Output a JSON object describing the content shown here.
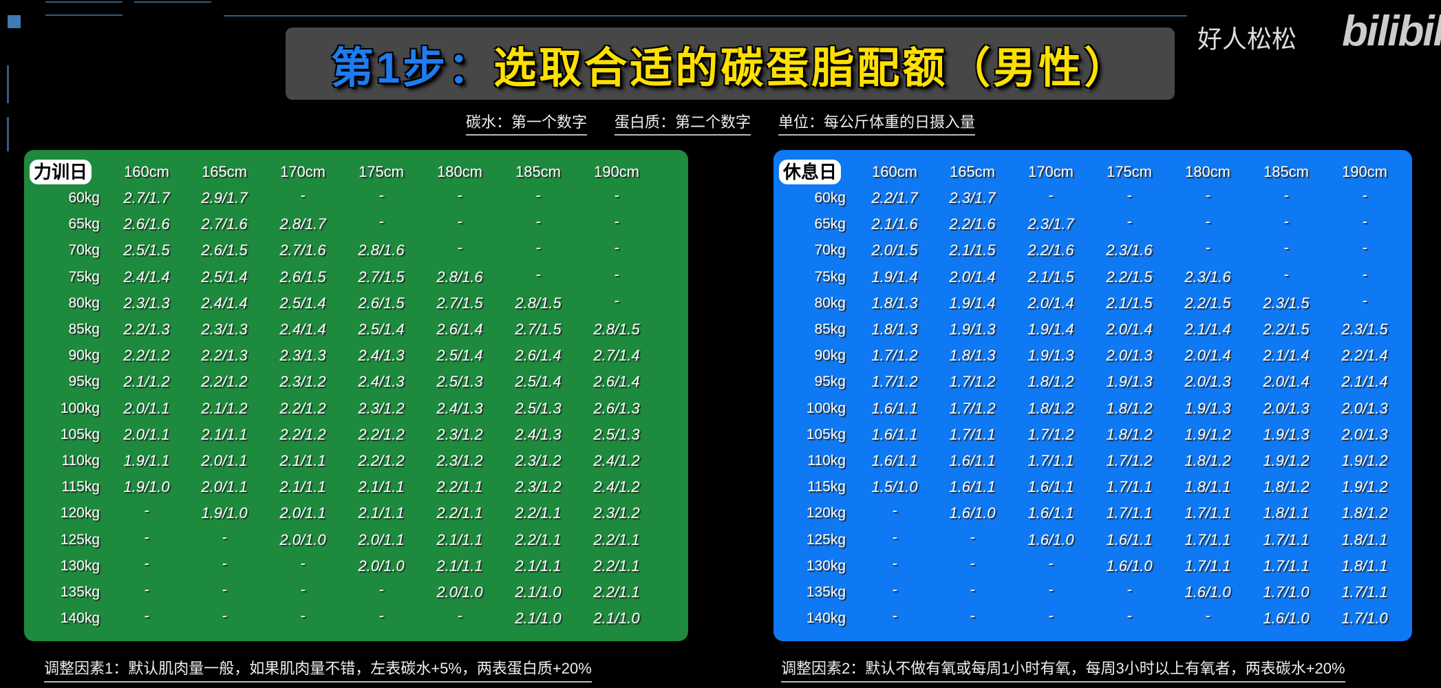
{
  "title": {
    "step": "第1步：",
    "text": "选取合适的碳蛋脂配额（男性）"
  },
  "subtitle": [
    "碳水：第一个数字",
    "蛋白质：第二个数字",
    "单位：每公斤体重的日摄入量"
  ],
  "watermark": {
    "author": "好人松松",
    "logo": "bilibili"
  },
  "colors": {
    "training_panel": "#1d8a3d",
    "rest_panel": "#0f78f3",
    "title_blue": "#1e7cf0",
    "title_yellow": "#ffe000"
  },
  "heights": [
    "160cm",
    "165cm",
    "170cm",
    "175cm",
    "180cm",
    "185cm",
    "190cm"
  ],
  "training_day": {
    "label": "力训日",
    "rows": [
      {
        "weight": "60kg",
        "values": [
          "2.7/1.7",
          "2.9/1.7",
          "-",
          "-",
          "-",
          "-",
          "-"
        ]
      },
      {
        "weight": "65kg",
        "values": [
          "2.6/1.6",
          "2.7/1.6",
          "2.8/1.7",
          "-",
          "-",
          "-",
          "-"
        ]
      },
      {
        "weight": "70kg",
        "values": [
          "2.5/1.5",
          "2.6/1.5",
          "2.7/1.6",
          "2.8/1.6",
          "-",
          "-",
          "-"
        ]
      },
      {
        "weight": "75kg",
        "values": [
          "2.4/1.4",
          "2.5/1.4",
          "2.6/1.5",
          "2.7/1.5",
          "2.8/1.6",
          "-",
          "-"
        ]
      },
      {
        "weight": "80kg",
        "values": [
          "2.3/1.3",
          "2.4/1.4",
          "2.5/1.4",
          "2.6/1.5",
          "2.7/1.5",
          "2.8/1.5",
          "-"
        ]
      },
      {
        "weight": "85kg",
        "values": [
          "2.2/1.3",
          "2.3/1.3",
          "2.4/1.4",
          "2.5/1.4",
          "2.6/1.4",
          "2.7/1.5",
          "2.8/1.5"
        ]
      },
      {
        "weight": "90kg",
        "values": [
          "2.2/1.2",
          "2.2/1.3",
          "2.3/1.3",
          "2.4/1.3",
          "2.5/1.4",
          "2.6/1.4",
          "2.7/1.4"
        ]
      },
      {
        "weight": "95kg",
        "values": [
          "2.1/1.2",
          "2.2/1.2",
          "2.3/1.2",
          "2.4/1.3",
          "2.5/1.3",
          "2.5/1.4",
          "2.6/1.4"
        ]
      },
      {
        "weight": "100kg",
        "values": [
          "2.0/1.1",
          "2.1/1.2",
          "2.2/1.2",
          "2.3/1.2",
          "2.4/1.3",
          "2.5/1.3",
          "2.6/1.3"
        ]
      },
      {
        "weight": "105kg",
        "values": [
          "2.0/1.1",
          "2.1/1.1",
          "2.2/1.2",
          "2.2/1.2",
          "2.3/1.2",
          "2.4/1.3",
          "2.5/1.3"
        ]
      },
      {
        "weight": "110kg",
        "values": [
          "1.9/1.1",
          "2.0/1.1",
          "2.1/1.1",
          "2.2/1.2",
          "2.3/1.2",
          "2.3/1.2",
          "2.4/1.2"
        ]
      },
      {
        "weight": "115kg",
        "values": [
          "1.9/1.0",
          "2.0/1.1",
          "2.1/1.1",
          "2.1/1.1",
          "2.2/1.1",
          "2.3/1.2",
          "2.4/1.2"
        ]
      },
      {
        "weight": "120kg",
        "values": [
          "-",
          "1.9/1.0",
          "2.0/1.1",
          "2.1/1.1",
          "2.2/1.1",
          "2.2/1.1",
          "2.3/1.2"
        ]
      },
      {
        "weight": "125kg",
        "values": [
          "-",
          "-",
          "2.0/1.0",
          "2.0/1.1",
          "2.1/1.1",
          "2.2/1.1",
          "2.2/1.1"
        ]
      },
      {
        "weight": "130kg",
        "values": [
          "-",
          "-",
          "-",
          "2.0/1.0",
          "2.1/1.1",
          "2.1/1.1",
          "2.2/1.1"
        ]
      },
      {
        "weight": "135kg",
        "values": [
          "-",
          "-",
          "-",
          "-",
          "2.0/1.0",
          "2.1/1.0",
          "2.2/1.1"
        ]
      },
      {
        "weight": "140kg",
        "values": [
          "-",
          "-",
          "-",
          "-",
          "-",
          "2.1/1.0",
          "2.1/1.0"
        ]
      }
    ]
  },
  "rest_day": {
    "label": "休息日",
    "rows": [
      {
        "weight": "60kg",
        "values": [
          "2.2/1.7",
          "2.3/1.7",
          "-",
          "-",
          "-",
          "-",
          "-"
        ]
      },
      {
        "weight": "65kg",
        "values": [
          "2.1/1.6",
          "2.2/1.6",
          "2.3/1.7",
          "-",
          "-",
          "-",
          "-"
        ]
      },
      {
        "weight": "70kg",
        "values": [
          "2.0/1.5",
          "2.1/1.5",
          "2.2/1.6",
          "2.3/1.6",
          "-",
          "-",
          "-"
        ]
      },
      {
        "weight": "75kg",
        "values": [
          "1.9/1.4",
          "2.0/1.4",
          "2.1/1.5",
          "2.2/1.5",
          "2.3/1.6",
          "-",
          "-"
        ]
      },
      {
        "weight": "80kg",
        "values": [
          "1.8/1.3",
          "1.9/1.4",
          "2.0/1.4",
          "2.1/1.5",
          "2.2/1.5",
          "2.3/1.5",
          "-"
        ]
      },
      {
        "weight": "85kg",
        "values": [
          "1.8/1.3",
          "1.9/1.3",
          "1.9/1.4",
          "2.0/1.4",
          "2.1/1.4",
          "2.2/1.5",
          "2.3/1.5"
        ]
      },
      {
        "weight": "90kg",
        "values": [
          "1.7/1.2",
          "1.8/1.3",
          "1.9/1.3",
          "2.0/1.3",
          "2.0/1.4",
          "2.1/1.4",
          "2.2/1.4"
        ]
      },
      {
        "weight": "95kg",
        "values": [
          "1.7/1.2",
          "1.7/1.2",
          "1.8/1.2",
          "1.9/1.3",
          "2.0/1.3",
          "2.0/1.4",
          "2.1/1.4"
        ]
      },
      {
        "weight": "100kg",
        "values": [
          "1.6/1.1",
          "1.7/1.2",
          "1.8/1.2",
          "1.8/1.2",
          "1.9/1.3",
          "2.0/1.3",
          "2.0/1.3"
        ]
      },
      {
        "weight": "105kg",
        "values": [
          "1.6/1.1",
          "1.7/1.1",
          "1.7/1.2",
          "1.8/1.2",
          "1.9/1.2",
          "1.9/1.3",
          "2.0/1.3"
        ]
      },
      {
        "weight": "110kg",
        "values": [
          "1.6/1.1",
          "1.6/1.1",
          "1.7/1.1",
          "1.7/1.2",
          "1.8/1.2",
          "1.9/1.2",
          "1.9/1.2"
        ]
      },
      {
        "weight": "115kg",
        "values": [
          "1.5/1.0",
          "1.6/1.1",
          "1.6/1.1",
          "1.7/1.1",
          "1.8/1.1",
          "1.8/1.2",
          "1.9/1.2"
        ]
      },
      {
        "weight": "120kg",
        "values": [
          "-",
          "1.6/1.0",
          "1.6/1.1",
          "1.7/1.1",
          "1.7/1.1",
          "1.8/1.1",
          "1.8/1.2"
        ]
      },
      {
        "weight": "125kg",
        "values": [
          "-",
          "-",
          "1.6/1.0",
          "1.6/1.1",
          "1.7/1.1",
          "1.7/1.1",
          "1.8/1.1"
        ]
      },
      {
        "weight": "130kg",
        "values": [
          "-",
          "-",
          "-",
          "1.6/1.0",
          "1.7/1.1",
          "1.7/1.1",
          "1.8/1.1"
        ]
      },
      {
        "weight": "135kg",
        "values": [
          "-",
          "-",
          "-",
          "-",
          "1.6/1.0",
          "1.7/1.0",
          "1.7/1.1"
        ]
      },
      {
        "weight": "140kg",
        "values": [
          "-",
          "-",
          "-",
          "-",
          "-",
          "1.6/1.0",
          "1.7/1.0"
        ]
      }
    ]
  },
  "footer": {
    "left": "调整因素1：默认肌肉量一般，如果肌肉量不错，左表碳水+5%，两表蛋白质+20%",
    "right": "调整因素2：默认不做有氧或每周1小时有氧，每周3小时以上有氧者，两表碳水+20%"
  }
}
